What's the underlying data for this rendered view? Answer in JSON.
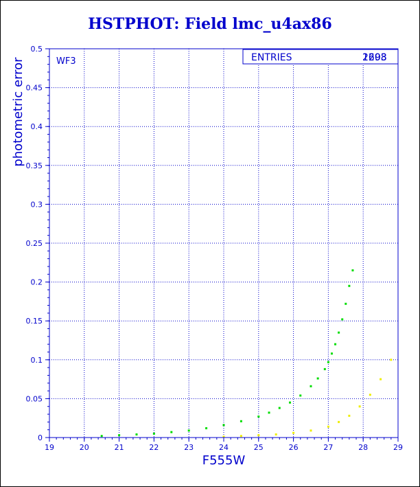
{
  "chart_data": {
    "type": "scatter",
    "title": "HSTPHOT: Field lmc_u4ax86",
    "xlabel": "F555W",
    "ylabel": "photometric error",
    "xlim": [
      19,
      29
    ],
    "ylim": [
      0,
      0.5
    ],
    "x_ticks": [
      "19",
      "20",
      "21",
      "22",
      "23",
      "24",
      "25",
      "26",
      "27",
      "28",
      "29"
    ],
    "y_ticks": [
      "0",
      "0.05",
      "0.1",
      "0.15",
      "0.2",
      "0.25",
      "0.3",
      "0.35",
      "0.4",
      "0.45",
      "0.5"
    ],
    "grid": true,
    "panel_label": "WF3",
    "stats_box": {
      "label": "ENTRIES",
      "value_a": "2608",
      "value_b": "1293"
    },
    "colors": {
      "axis": "#0000cc",
      "series_green": "#00dd00",
      "series_yellow": "#eeee00"
    },
    "series": [
      {
        "color": "#00dd00",
        "x": [
          20.5,
          21.0,
          21.5,
          22.0,
          22.5,
          23.0,
          23.5,
          24.0,
          24.5,
          25.0,
          25.3,
          25.6,
          25.9,
          26.2,
          26.5,
          26.7,
          26.9,
          27.0,
          27.1,
          27.2,
          27.3,
          27.4,
          27.5,
          27.6,
          27.7
        ],
        "y": [
          0.002,
          0.003,
          0.004,
          0.005,
          0.007,
          0.009,
          0.012,
          0.016,
          0.021,
          0.027,
          0.032,
          0.038,
          0.045,
          0.054,
          0.066,
          0.076,
          0.088,
          0.097,
          0.108,
          0.12,
          0.135,
          0.152,
          0.172,
          0.195,
          0.215
        ]
      },
      {
        "color": "#eeee00",
        "x": [
          24.0,
          24.5,
          25.0,
          25.5,
          26.0,
          26.5,
          27.0,
          27.3,
          27.6,
          27.9,
          28.2,
          28.5,
          28.8
        ],
        "y": [
          0.001,
          0.002,
          0.003,
          0.004,
          0.006,
          0.009,
          0.014,
          0.02,
          0.028,
          0.04,
          0.055,
          0.075,
          0.1
        ]
      }
    ]
  }
}
